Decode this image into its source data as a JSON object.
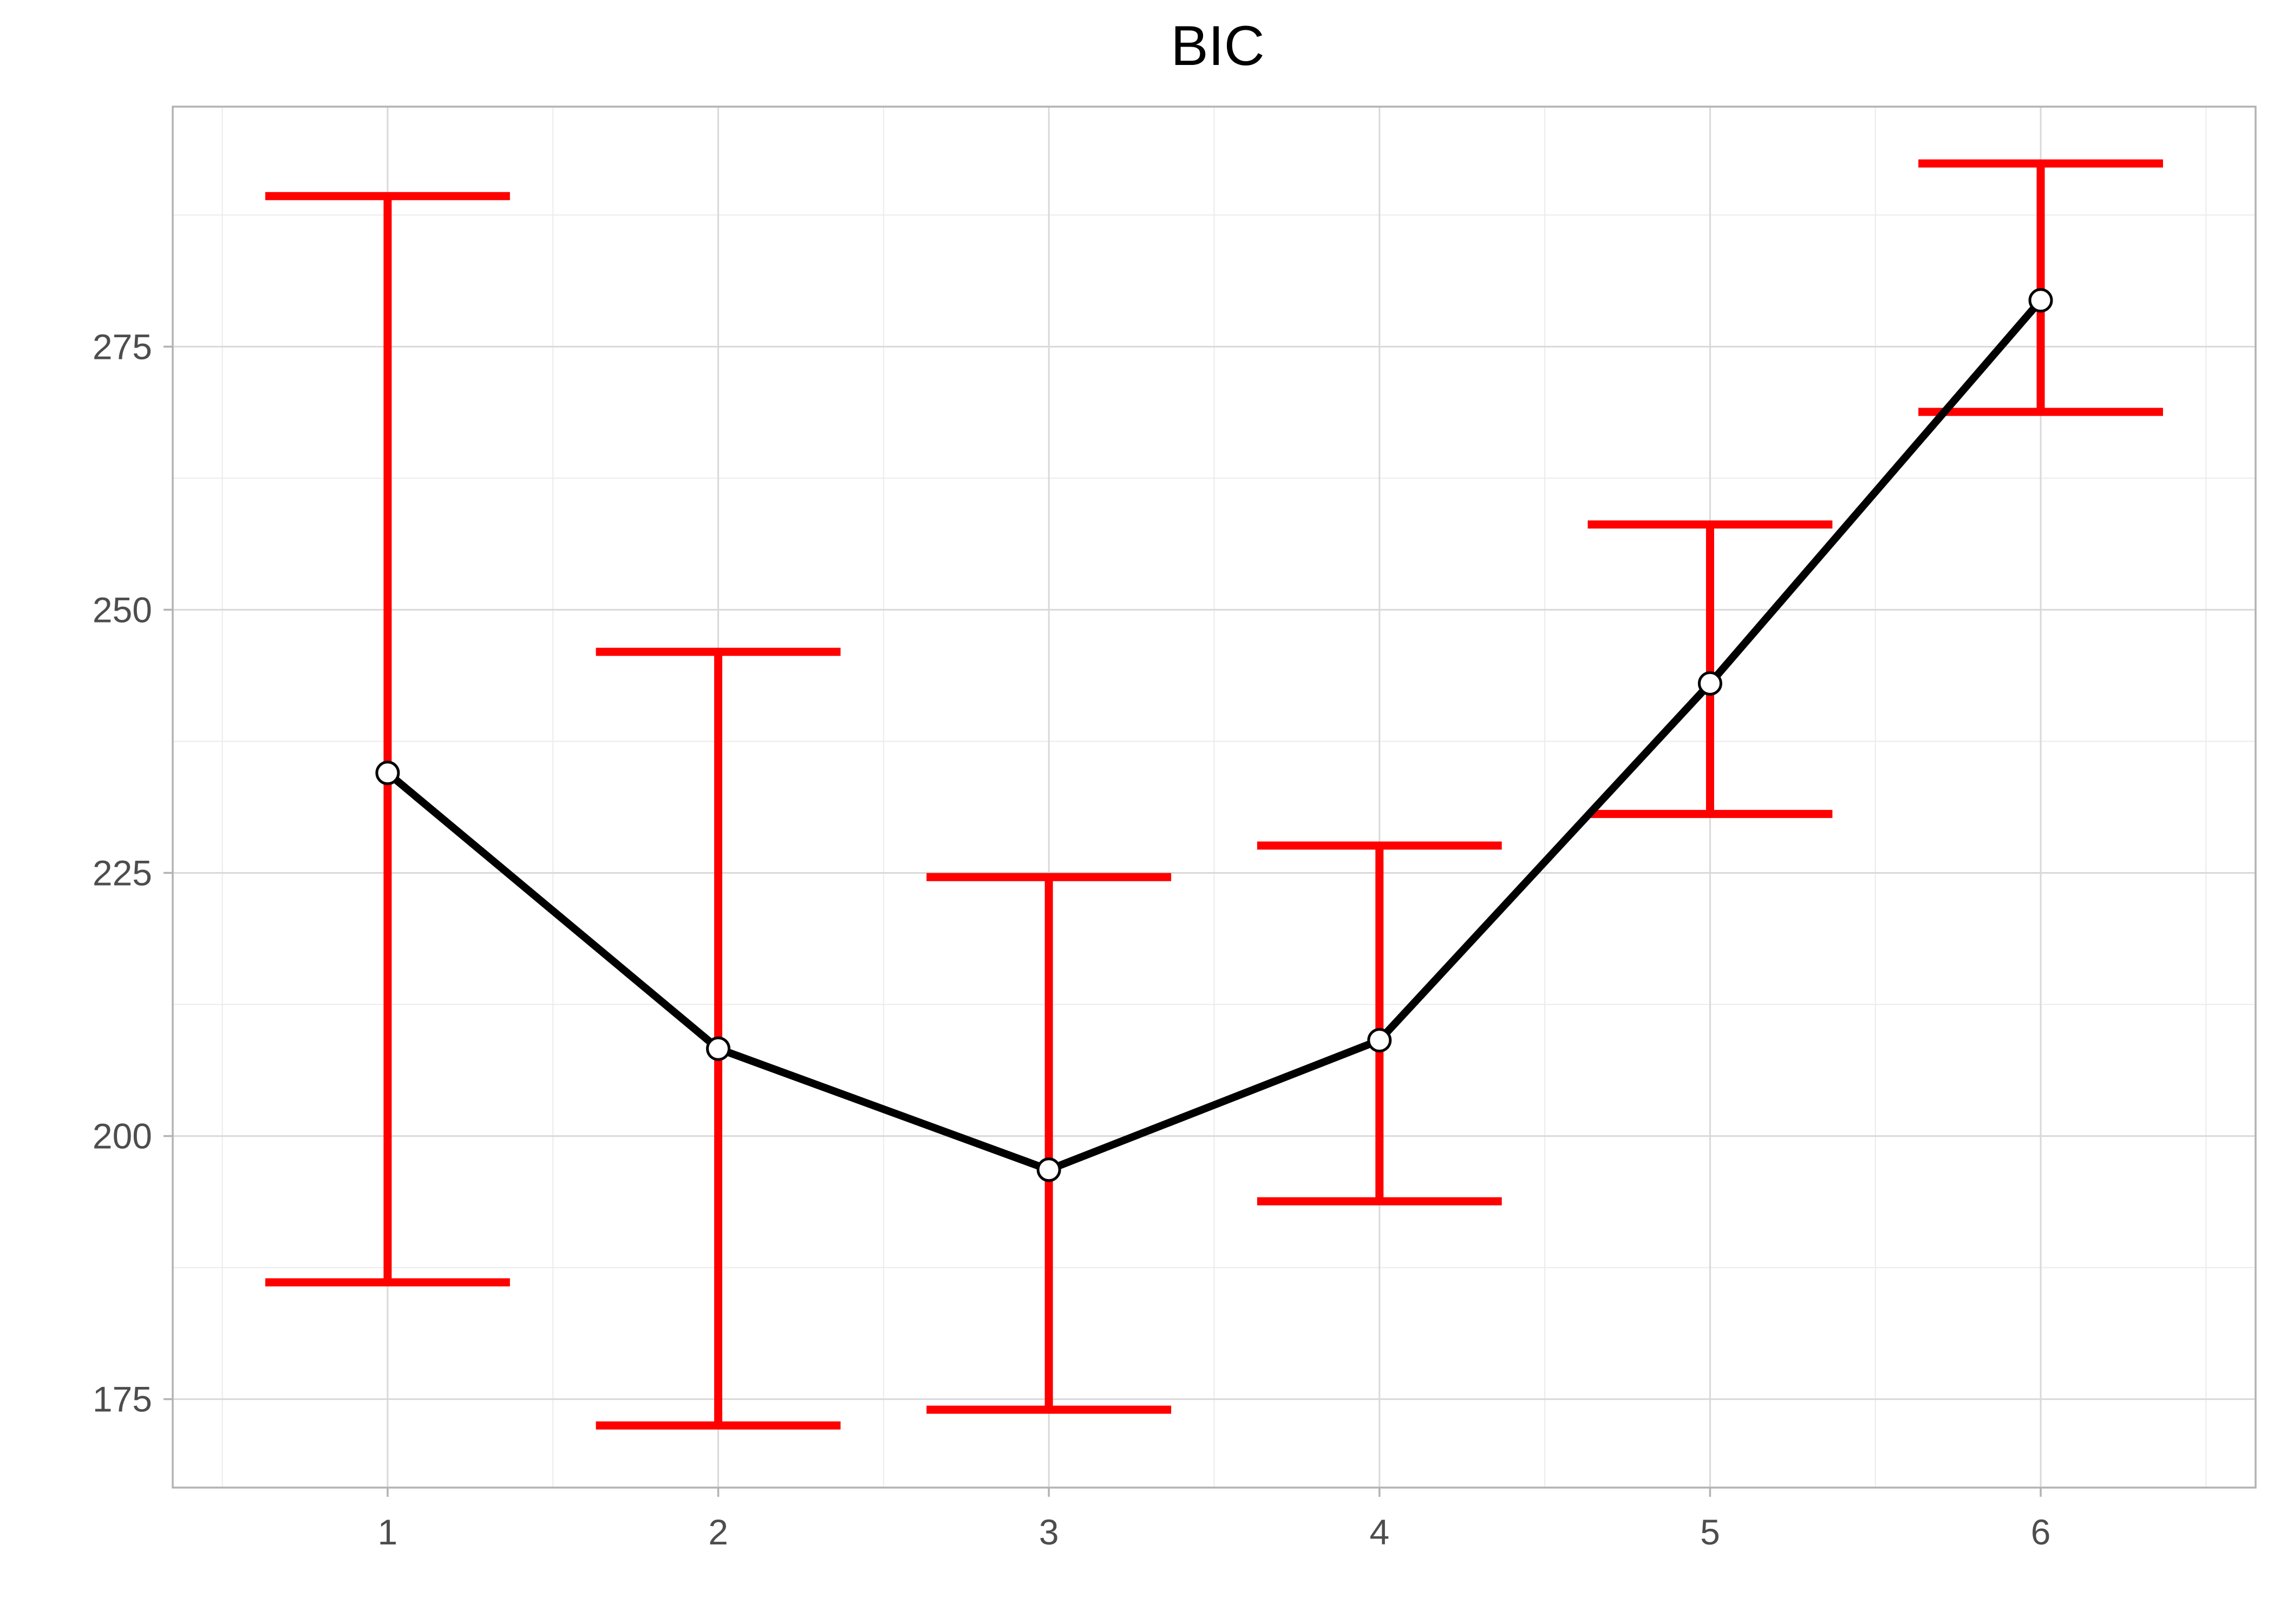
{
  "chart_data": {
    "type": "line",
    "title": "BIC",
    "xlabel": "",
    "ylabel": "",
    "x": [
      1,
      2,
      3,
      4,
      5,
      6
    ],
    "series": [
      {
        "values": [
          234.5,
          208.3,
          196.8,
          209.1,
          243.0,
          279.4
        ],
        "error_lower": [
          186.1,
          172.5,
          174.0,
          193.8,
          230.6,
          268.8
        ],
        "error_upper": [
          289.3,
          246.0,
          224.6,
          227.6,
          258.1,
          292.4
        ]
      }
    ],
    "xlim": [
      0.35,
      6.65
    ],
    "ylim": [
      166.6,
      297.8
    ],
    "x_ticks": [
      "1",
      "2",
      "3",
      "4",
      "5",
      "6"
    ],
    "y_ticks": [
      "175",
      "200",
      "225",
      "250",
      "275"
    ],
    "grid": true,
    "legend": "none",
    "colors": {
      "line": "#000000",
      "error_bars": "#ff0000",
      "points_fill": "#ffffff",
      "points_stroke": "#000000"
    }
  }
}
